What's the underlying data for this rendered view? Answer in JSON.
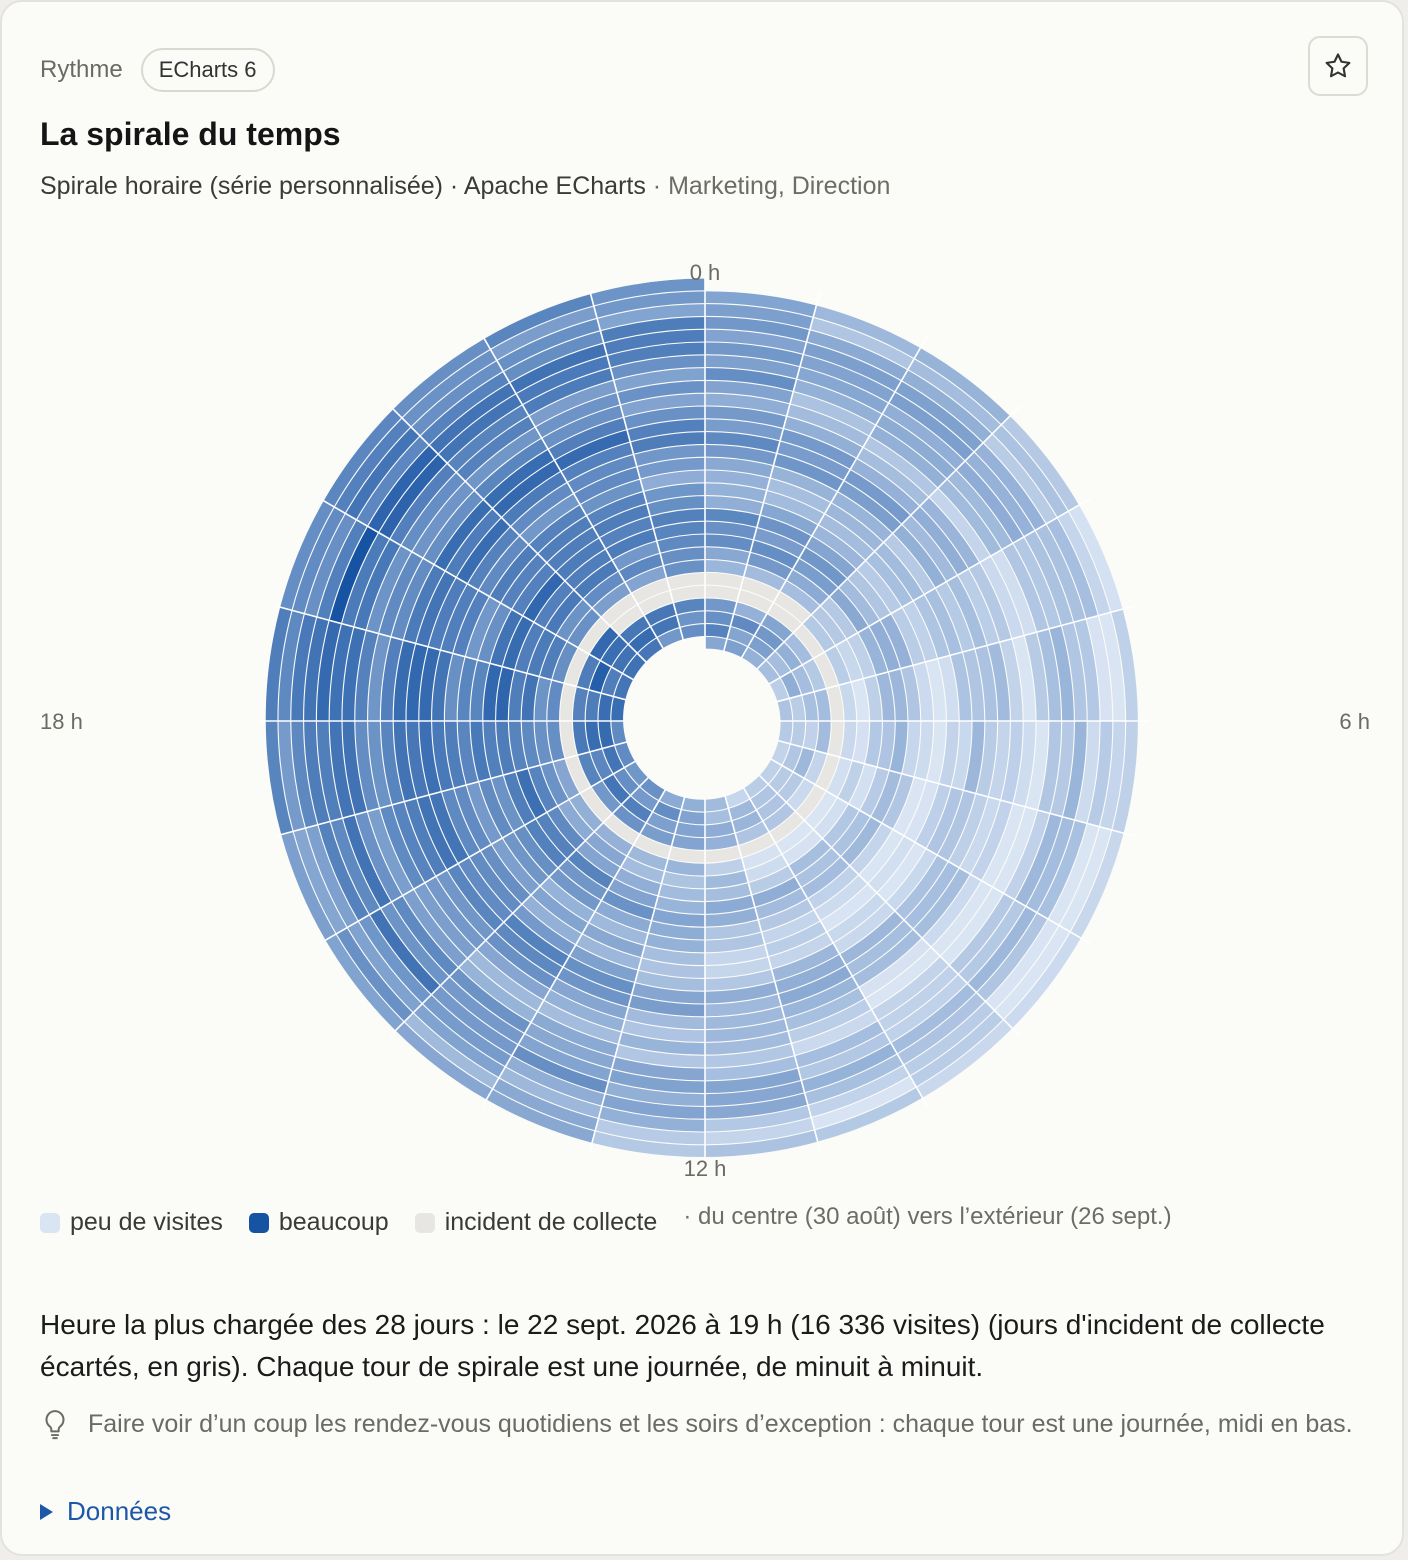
{
  "header": {
    "eyebrow": "Rythme",
    "badge": "ECharts 6",
    "title": "La spirale du temps",
    "subtitle_main": "Spirale horaire (série personnalisée) · Apache ECharts",
    "subtitle_audience": " · Marketing, Direction",
    "favorite_icon": "star-icon"
  },
  "chart_data": {
    "type": "heatmap",
    "layout": "spiral",
    "hour_labels": [
      "0 h",
      "6 h",
      "12 h",
      "18 h"
    ],
    "hours_per_turn": 24,
    "days": 28,
    "start_day": "30 août",
    "end_day": "26 sept.",
    "incident_turn_index": 4,
    "peak": {
      "date": "22 sept. 2026",
      "hour": 19,
      "visits": 16336
    },
    "color_scale": {
      "low": "#dae5f4",
      "high": "#1653a3",
      "incident": "#e7e6e2"
    },
    "legend": {
      "low": "peu de visites",
      "high": "beaucoup",
      "incident": "incident de collecte",
      "note": "· du centre (30 août) vers l’extérieur (26 sept.)"
    }
  },
  "summary": "Heure la plus chargée des 28 jours : le 22 sept. 2026 à 19 h (16 336 visites) (jours d'incident de collecte écartés, en gris). Chaque tour de spirale est une journée, de minuit à minuit.",
  "tip": {
    "icon": "lightbulb-icon",
    "text": "Faire voir d’un coup les rendez-vous quotidiens et les soirs d’exception : chaque tour est une journée, midi en bas."
  },
  "details_label": "Données"
}
